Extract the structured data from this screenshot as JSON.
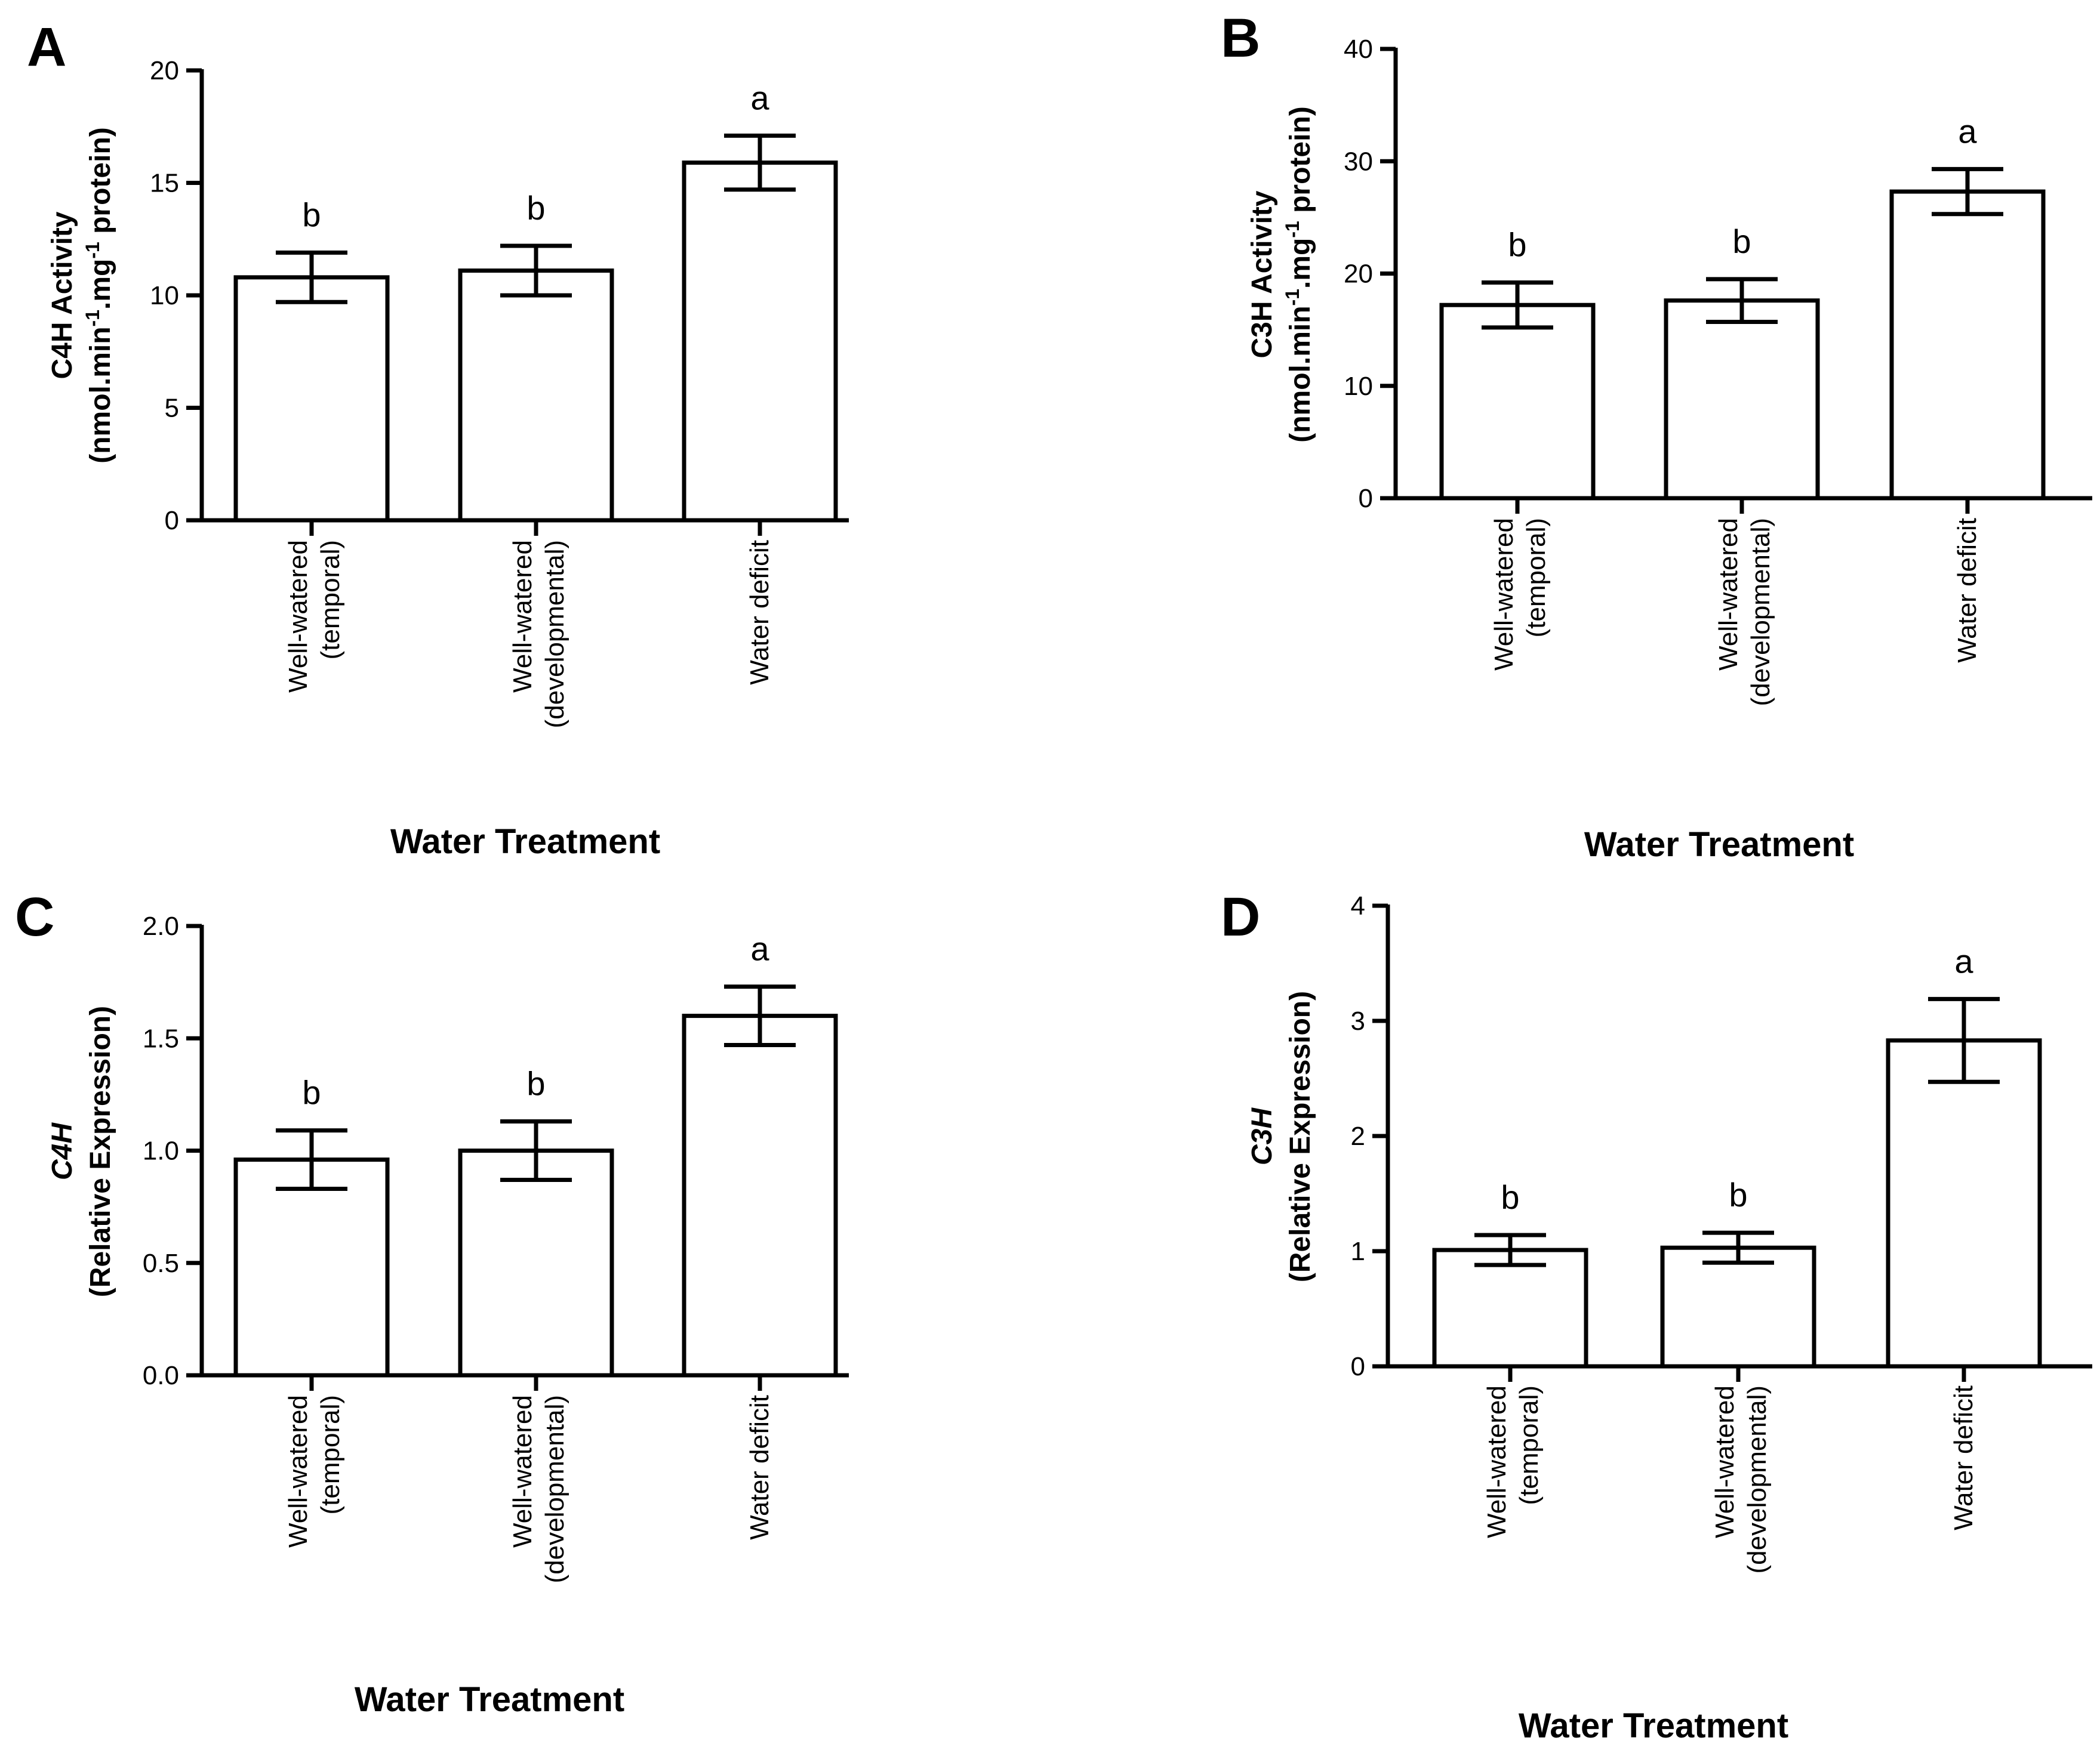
{
  "chart_data": [
    {
      "panel": "A",
      "type": "bar",
      "categories": [
        "Well-watered\n(temporal)",
        "Well-watered\n(developmental)",
        "Water deficit"
      ],
      "values": [
        10.8,
        11.1,
        15.9
      ],
      "errors": [
        1.1,
        1.1,
        1.2
      ],
      "significance": [
        "b",
        "b",
        "a"
      ],
      "ylabel_line1": "C4H Activity",
      "ylabel_line2_parts": [
        {
          "text": "(nmol.min",
          "sup": false
        },
        {
          "text": "-1",
          "sup": true
        },
        {
          "text": ".mg",
          "sup": false
        },
        {
          "text": "-1",
          "sup": true
        },
        {
          "text": " protein)",
          "sup": false
        }
      ],
      "ylabel_italic": false,
      "xlabel": "Water Treatment",
      "ylim": [
        0,
        20
      ],
      "yticks": [
        "0",
        "5",
        "10",
        "15",
        "20"
      ],
      "ytick_values": [
        0,
        5,
        10,
        15,
        20
      ],
      "grid": false
    },
    {
      "panel": "B",
      "type": "bar",
      "categories": [
        "Well-watered\n(temporal)",
        "Well-watered\n(developmental)",
        "Water deficit"
      ],
      "values": [
        17.2,
        17.6,
        27.3
      ],
      "errors": [
        2.0,
        1.9,
        2.0
      ],
      "significance": [
        "b",
        "b",
        "a"
      ],
      "ylabel_line1": "C3H Activity",
      "ylabel_line2_parts": [
        {
          "text": "(nmol.min",
          "sup": false
        },
        {
          "text": "-1",
          "sup": true
        },
        {
          "text": ".mg",
          "sup": false
        },
        {
          "text": "-1",
          "sup": true
        },
        {
          "text": " protein)",
          "sup": false
        }
      ],
      "ylabel_italic": false,
      "xlabel": "Water Treatment",
      "ylim": [
        0,
        40
      ],
      "yticks": [
        "0",
        "10",
        "20",
        "30",
        "40"
      ],
      "ytick_values": [
        0,
        10,
        20,
        30,
        40
      ],
      "grid": false
    },
    {
      "panel": "C",
      "type": "bar",
      "categories": [
        "Well-watered\n(temporal)",
        "Well-watered\n(developmental)",
        "Water deficit"
      ],
      "values": [
        0.96,
        1.0,
        1.6
      ],
      "errors": [
        0.13,
        0.13,
        0.13
      ],
      "significance": [
        "b",
        "b",
        "a"
      ],
      "ylabel_line1": "C4H",
      "ylabel_line2_parts": [
        {
          "text": "(Relative Expression)",
          "sup": false
        }
      ],
      "ylabel_italic": true,
      "xlabel": "Water Treatment",
      "ylim": [
        0,
        2.0
      ],
      "yticks": [
        "0.0",
        "0.5",
        "1.0",
        "1.5",
        "2.0"
      ],
      "ytick_values": [
        0,
        0.5,
        1.0,
        1.5,
        2.0
      ],
      "grid": false
    },
    {
      "panel": "D",
      "type": "bar",
      "categories": [
        "Well-watered\n(temporal)",
        "Well-watered\n(developmental)",
        "Water deficit"
      ],
      "values": [
        1.01,
        1.03,
        2.83
      ],
      "errors": [
        0.13,
        0.13,
        0.36
      ],
      "significance": [
        "b",
        "b",
        "a"
      ],
      "ylabel_line1": "C3H",
      "ylabel_line2_parts": [
        {
          "text": "(Relative Expression)",
          "sup": false
        }
      ],
      "ylabel_italic": true,
      "xlabel": "Water Treatment",
      "ylim": [
        0,
        4
      ],
      "yticks": [
        "0",
        "1",
        "2",
        "3",
        "4"
      ],
      "ytick_values": [
        0,
        1,
        2,
        3,
        4
      ],
      "grid": false
    }
  ]
}
